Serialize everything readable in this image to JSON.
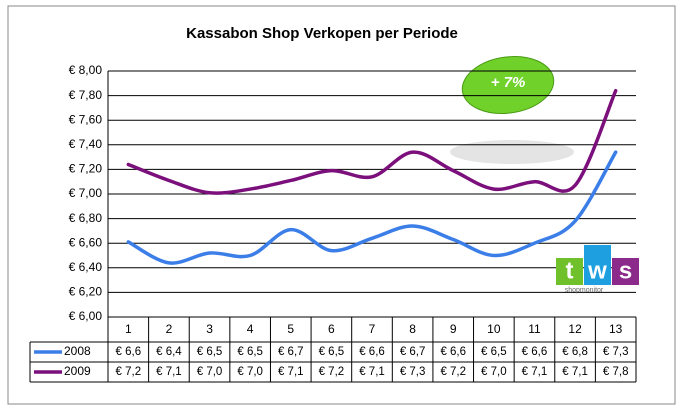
{
  "chart_data": {
    "type": "line",
    "title": "Kassabon Shop Verkopen per Periode",
    "categories": [
      "1",
      "2",
      "3",
      "4",
      "5",
      "6",
      "7",
      "8",
      "9",
      "10",
      "11",
      "12",
      "13"
    ],
    "series": [
      {
        "name": "2008",
        "color": "#3b7ee8",
        "values": [
          6.61,
          6.44,
          6.52,
          6.5,
          6.71,
          6.54,
          6.64,
          6.74,
          6.63,
          6.5,
          6.6,
          6.78,
          7.34
        ],
        "value_labels": [
          "€ 6,6",
          "€ 6,4",
          "€ 6,5",
          "€ 6,5",
          "€ 6,7",
          "€ 6,5",
          "€ 6,6",
          "€ 6,7",
          "€ 6,6",
          "€ 6,5",
          "€ 6,6",
          "€ 6,8",
          "€ 7,3"
        ]
      },
      {
        "name": "2009",
        "color": "#7b0f7b",
        "values": [
          7.24,
          7.11,
          7.01,
          7.04,
          7.11,
          7.19,
          7.14,
          7.34,
          7.19,
          7.04,
          7.1,
          7.07,
          7.84
        ],
        "value_labels": [
          "€ 7,2",
          "€ 7,1",
          "€ 7,0",
          "€ 7,0",
          "€ 7,1",
          "€ 7,2",
          "€ 7,1",
          "€ 7,3",
          "€ 7,2",
          "€ 7,0",
          "€ 7,1",
          "€ 7,1",
          "€ 7,8"
        ]
      }
    ],
    "ylim": [
      6,
      8
    ],
    "yticks": [
      {
        "value": 6,
        "label": "€ 6,00"
      },
      {
        "value": 6.2,
        "label": "€ 6,20"
      },
      {
        "value": 6.4,
        "label": "€ 6,40"
      },
      {
        "value": 6.6,
        "label": "€ 6,60"
      },
      {
        "value": 6.8,
        "label": "€ 6,80"
      },
      {
        "value": 7,
        "label": "€ 7,00"
      },
      {
        "value": 7.2,
        "label": "€ 7,20"
      },
      {
        "value": 7.4,
        "label": "€ 7,40"
      },
      {
        "value": 7.6,
        "label": "€ 7,60"
      },
      {
        "value": 7.8,
        "label": "€ 7,80"
      },
      {
        "value": 8,
        "label": "€ 8,00"
      }
    ],
    "grid": true,
    "annotation": "+ 7%",
    "logo": {
      "letters": [
        "t",
        "w",
        "s"
      ],
      "caption": "shopmonitor"
    }
  }
}
